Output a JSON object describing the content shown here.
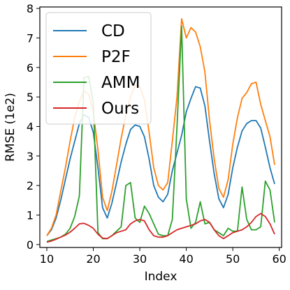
{
  "chart_data": {
    "type": "line",
    "xlabel": "Index",
    "ylabel": "RMSE (1e2)",
    "xlim": [
      8.5,
      60.5
    ],
    "ylim": [
      -0.1,
      8.05
    ],
    "xticks": [
      10,
      20,
      30,
      40,
      50,
      60
    ],
    "yticks": [
      0,
      1,
      2,
      3,
      4,
      5,
      6,
      7,
      8
    ],
    "grid": false,
    "legend_position": "top-left",
    "x": [
      10,
      11,
      12,
      13,
      14,
      15,
      16,
      17,
      18,
      19,
      20,
      21,
      22,
      23,
      24,
      25,
      26,
      27,
      28,
      29,
      30,
      31,
      32,
      33,
      34,
      35,
      36,
      37,
      38,
      39,
      40,
      41,
      42,
      43,
      44,
      45,
      46,
      47,
      48,
      49,
      50,
      51,
      52,
      53,
      54,
      55,
      56,
      57,
      58,
      59
    ],
    "series": [
      {
        "name": "CD",
        "color": "#1f77b4",
        "values": [
          0.3,
          0.5,
          0.9,
          1.5,
          2.2,
          2.9,
          3.5,
          4.1,
          4.4,
          4.3,
          3.8,
          2.6,
          1.25,
          0.9,
          1.4,
          2.1,
          2.8,
          3.4,
          3.9,
          4.05,
          4.0,
          3.65,
          2.9,
          2.0,
          1.6,
          1.45,
          1.7,
          2.5,
          3.1,
          3.7,
          4.5,
          4.95,
          5.35,
          5.3,
          4.7,
          3.5,
          2.4,
          1.55,
          1.25,
          1.7,
          2.6,
          3.3,
          3.85,
          4.1,
          4.2,
          4.2,
          3.95,
          3.3,
          2.6,
          2.05
        ]
      },
      {
        "name": "P2F",
        "color": "#ff7f0e",
        "values": [
          0.3,
          0.55,
          1.0,
          1.8,
          2.6,
          3.5,
          4.3,
          4.85,
          5.2,
          5.1,
          4.5,
          3.2,
          1.6,
          1.15,
          1.8,
          2.7,
          3.6,
          4.4,
          5.0,
          5.4,
          5.35,
          4.9,
          3.8,
          2.6,
          2.0,
          1.85,
          2.1,
          3.5,
          5.0,
          7.65,
          7.0,
          7.35,
          7.2,
          6.7,
          5.85,
          4.2,
          2.9,
          1.9,
          1.6,
          2.2,
          3.4,
          4.3,
          4.95,
          5.15,
          5.45,
          5.5,
          4.75,
          4.2,
          3.65,
          2.7
        ]
      },
      {
        "name": "AMM",
        "color": "#2ca02c",
        "values": [
          0.1,
          0.15,
          0.2,
          0.25,
          0.35,
          0.55,
          0.95,
          1.65,
          5.65,
          5.7,
          4.8,
          0.4,
          0.2,
          0.2,
          0.3,
          0.45,
          0.6,
          2.0,
          2.1,
          0.9,
          0.75,
          1.3,
          1.05,
          0.7,
          0.35,
          0.3,
          0.3,
          0.85,
          4.0,
          7.4,
          1.55,
          0.55,
          0.75,
          1.45,
          0.7,
          0.75,
          0.5,
          0.4,
          0.3,
          0.55,
          0.45,
          0.45,
          1.95,
          0.85,
          0.5,
          0.5,
          0.6,
          2.15,
          1.85,
          0.75
        ]
      },
      {
        "name": "Ours",
        "color": "#d62728",
        "values": [
          0.08,
          0.12,
          0.18,
          0.25,
          0.32,
          0.42,
          0.55,
          0.7,
          0.72,
          0.65,
          0.55,
          0.35,
          0.22,
          0.2,
          0.3,
          0.4,
          0.45,
          0.5,
          0.7,
          0.8,
          0.85,
          0.8,
          0.5,
          0.3,
          0.25,
          0.25,
          0.3,
          0.4,
          0.5,
          0.55,
          0.6,
          0.65,
          0.7,
          0.8,
          0.85,
          0.75,
          0.5,
          0.3,
          0.2,
          0.3,
          0.4,
          0.45,
          0.5,
          0.6,
          0.75,
          0.95,
          1.05,
          0.95,
          0.7,
          0.35
        ]
      }
    ]
  }
}
